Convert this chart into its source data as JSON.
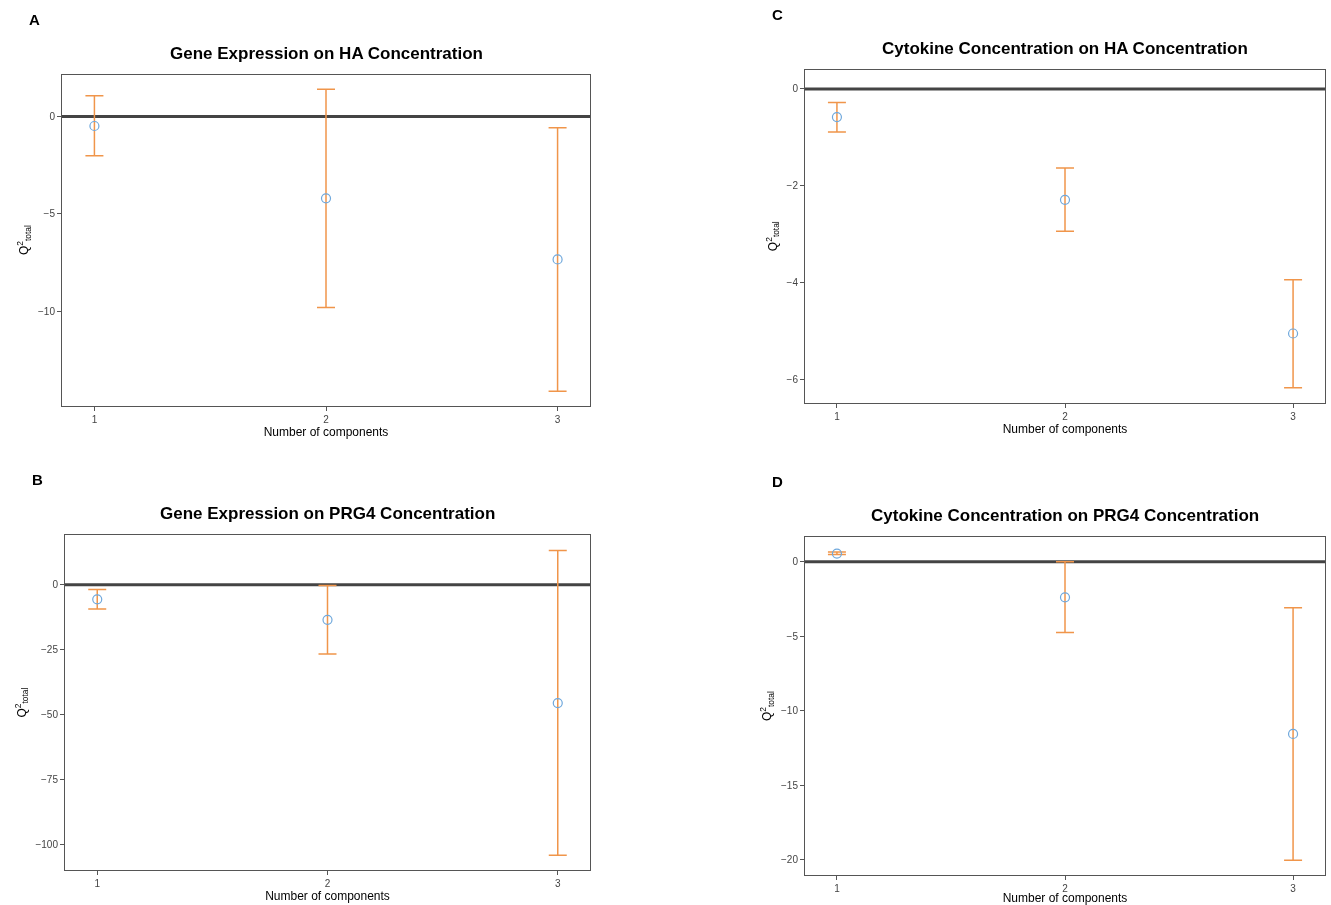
{
  "chart_data": [
    {
      "type": "scatter",
      "title": "Gene Expression on HA Concentration",
      "xlabel": "Number of components",
      "ylabel": "Q$^{2}$$_{total}$",
      "annotations": [
        "A"
      ],
      "categories": [
        "1",
        "2",
        "3"
      ],
      "ylim": [
        -14.85,
        2.15
      ],
      "yticks": [
        -10,
        -5,
        0
      ],
      "marker": "circle",
      "series": [
        {
          "color": "#6fa8dc",
          "values": [
            -0.49,
            -4.2,
            -7.34
          ],
          "errors": [
            [
              -2.02,
              1.07
            ],
            [
              -9.8,
              1.4
            ],
            [
              -14.1,
              -0.58
            ]
          ]
        }
      ],
      "ref_lines": [
        {
          "axis": "y",
          "value": 0,
          "color": "#444444"
        }
      ]
    },
    {
      "type": "scatter",
      "title": "Cytokine Concentration on HA Concentration",
      "xlabel": "Number of components",
      "ylabel": "Q$^{2}$$_{total}$",
      "annotations": [
        "C"
      ],
      "categories": [
        "1",
        "2",
        "3"
      ],
      "ylim": [
        -6.48,
        0.4
      ],
      "yticks": [
        -6,
        -4,
        -2,
        0
      ],
      "marker": "circle",
      "series": [
        {
          "color": "#6fa8dc",
          "values": [
            -0.58,
            -2.29,
            -5.05
          ],
          "errors": [
            [
              -0.89,
              -0.28
            ],
            [
              -2.94,
              -1.63
            ],
            [
              -6.17,
              -3.94
            ]
          ]
        }
      ],
      "ref_lines": [
        {
          "axis": "y",
          "value": 0,
          "color": "#444444"
        }
      ]
    },
    {
      "type": "scatter",
      "title": "Gene Expression on PRG4 Concentration",
      "xlabel": "Number of components",
      "ylabel": "Q$^{2}$$_{total}$",
      "annotations": [
        "B"
      ],
      "categories": [
        "1",
        "2",
        "3"
      ],
      "ylim": [
        -109.7,
        19.1
      ],
      "yticks": [
        -100,
        -75,
        -50,
        -25,
        0
      ],
      "marker": "circle",
      "series": [
        {
          "color": "#6fa8dc",
          "values": [
            -5.6,
            -13.5,
            -45.5
          ],
          "errors": [
            [
              -9.3,
              -1.8
            ],
            [
              -26.6,
              -0.3
            ],
            [
              -104,
              13.2
            ]
          ]
        }
      ],
      "ref_lines": [
        {
          "axis": "y",
          "value": 0,
          "color": "#444444"
        }
      ]
    },
    {
      "type": "scatter",
      "title": "Cytokine Concentration on PRG4 Concentration",
      "xlabel": "Number of components",
      "ylabel": "Q$^{2}$$_{total}$",
      "annotations": [
        "D"
      ],
      "categories": [
        "1",
        "2",
        "3"
      ],
      "ylim": [
        -21.05,
        1.67
      ],
      "yticks": [
        -20,
        -15,
        -10,
        -5,
        0
      ],
      "marker": "circle",
      "series": [
        {
          "color": "#6fa8dc",
          "values": [
            0.56,
            -2.38,
            -11.56
          ],
          "errors": [
            [
              0.49,
              0.67
            ],
            [
              -4.74,
              0
            ],
            [
              -20.05,
              -3.08
            ]
          ]
        }
      ],
      "ref_lines": [
        {
          "axis": "y",
          "value": 0,
          "color": "#444444"
        }
      ]
    }
  ]
}
